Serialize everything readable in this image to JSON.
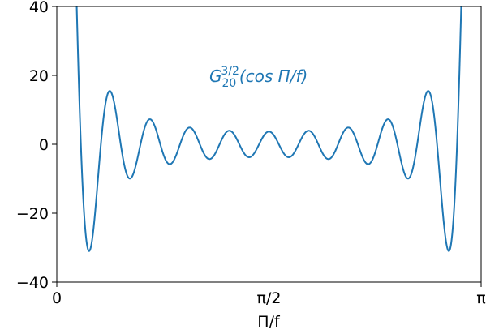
{
  "chart_data": {
    "type": "line",
    "title": "",
    "xlabel": "Π/f",
    "ylabel": "",
    "xlim": [
      0,
      3.14159265
    ],
    "ylim": [
      -40,
      40
    ],
    "x_tick_labels": [
      "0",
      "π/2",
      "π"
    ],
    "y_tick_labels": [
      "40",
      "20",
      "0",
      "−20",
      "−40"
    ],
    "grid": false,
    "annotation": {
      "base": "G",
      "sub": "20",
      "sup": "3/2",
      "rest": "(cos Π/f)"
    },
    "series": [
      {
        "color": "#1f77b4",
        "function": "Gegenbauer C_20^(3/2)(cos x)",
        "n": 20,
        "alpha": 1.5
      }
    ]
  }
}
